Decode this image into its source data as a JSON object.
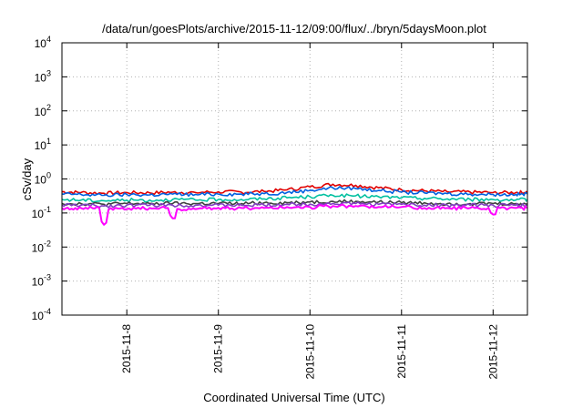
{
  "chart_data": {
    "type": "line",
    "title": "/data/run/goesPlots/archive/2015-11-12/09:00/flux/../bryn/5daysMoon.plot",
    "xlabel": "Coordinated Universal Time (UTC)",
    "ylabel": "cSv/day",
    "yscale": "log",
    "ylim": [
      0.0001,
      10000
    ],
    "xlim": [
      "2015-11-07 07:00",
      "2015-11-12 09:00"
    ],
    "grid": true,
    "y_ticks": [
      {
        "base": "10",
        "exp": "-4"
      },
      {
        "base": "10",
        "exp": "-3"
      },
      {
        "base": "10",
        "exp": "-2"
      },
      {
        "base": "10",
        "exp": "-1"
      },
      {
        "base": "10",
        "exp": "0"
      },
      {
        "base": "10",
        "exp": "1"
      },
      {
        "base": "10",
        "exp": "2"
      },
      {
        "base": "10",
        "exp": "3"
      },
      {
        "base": "10",
        "exp": "4"
      }
    ],
    "x_ticks": [
      "2015-11-8",
      "2015-11-9",
      "2015-11-10",
      "2015-11-11",
      "2015-11-12"
    ],
    "x": [
      "2015-11-07 07:00",
      "2015-11-07 12:00",
      "2015-11-07 18:00",
      "2015-11-08 00:00",
      "2015-11-08 06:00",
      "2015-11-08 12:00",
      "2015-11-08 18:00",
      "2015-11-09 00:00",
      "2015-11-09 06:00",
      "2015-11-09 12:00",
      "2015-11-09 18:00",
      "2015-11-10 00:00",
      "2015-11-10 06:00",
      "2015-11-10 12:00",
      "2015-11-10 18:00",
      "2015-11-11 00:00",
      "2015-11-11 06:00",
      "2015-11-11 12:00",
      "2015-11-11 18:00",
      "2015-11-12 00:00",
      "2015-11-12 06:00",
      "2015-11-12 09:00"
    ],
    "series": [
      {
        "color": "#e00000",
        "values": [
          0.42,
          0.4,
          0.38,
          0.4,
          0.39,
          0.41,
          0.4,
          0.42,
          0.41,
          0.43,
          0.48,
          0.58,
          0.7,
          0.65,
          0.55,
          0.48,
          0.45,
          0.42,
          0.41,
          0.4,
          0.4,
          0.41
        ]
      },
      {
        "color": "#0060e0",
        "values": [
          0.36,
          0.35,
          0.33,
          0.35,
          0.34,
          0.36,
          0.35,
          0.36,
          0.36,
          0.37,
          0.4,
          0.46,
          0.55,
          0.52,
          0.46,
          0.41,
          0.39,
          0.37,
          0.36,
          0.35,
          0.35,
          0.36
        ]
      },
      {
        "color": "#00c0a0",
        "values": [
          0.25,
          0.24,
          0.23,
          0.24,
          0.24,
          0.25,
          0.24,
          0.25,
          0.25,
          0.26,
          0.28,
          0.3,
          0.33,
          0.32,
          0.3,
          0.28,
          0.27,
          0.26,
          0.25,
          0.25,
          0.24,
          0.25
        ]
      },
      {
        "color": "#404040",
        "values": [
          0.19,
          0.19,
          0.18,
          0.19,
          0.19,
          0.19,
          0.19,
          0.19,
          0.19,
          0.2,
          0.2,
          0.21,
          0.22,
          0.22,
          0.21,
          0.2,
          0.2,
          0.19,
          0.19,
          0.19,
          0.19,
          0.19
        ]
      },
      {
        "color": "#8040c0",
        "values": [
          0.17,
          0.17,
          0.16,
          0.17,
          0.17,
          0.17,
          0.17,
          0.17,
          0.17,
          0.17,
          0.18,
          0.18,
          0.19,
          0.19,
          0.18,
          0.18,
          0.17,
          0.17,
          0.17,
          0.17,
          0.17,
          0.17
        ]
      },
      {
        "color": "#ff00ff",
        "values": [
          0.14,
          0.14,
          0.045,
          0.13,
          0.14,
          0.07,
          0.13,
          0.14,
          0.14,
          0.14,
          0.15,
          0.15,
          0.16,
          0.16,
          0.15,
          0.15,
          0.14,
          0.14,
          0.14,
          0.09,
          0.14,
          0.14
        ]
      }
    ]
  }
}
